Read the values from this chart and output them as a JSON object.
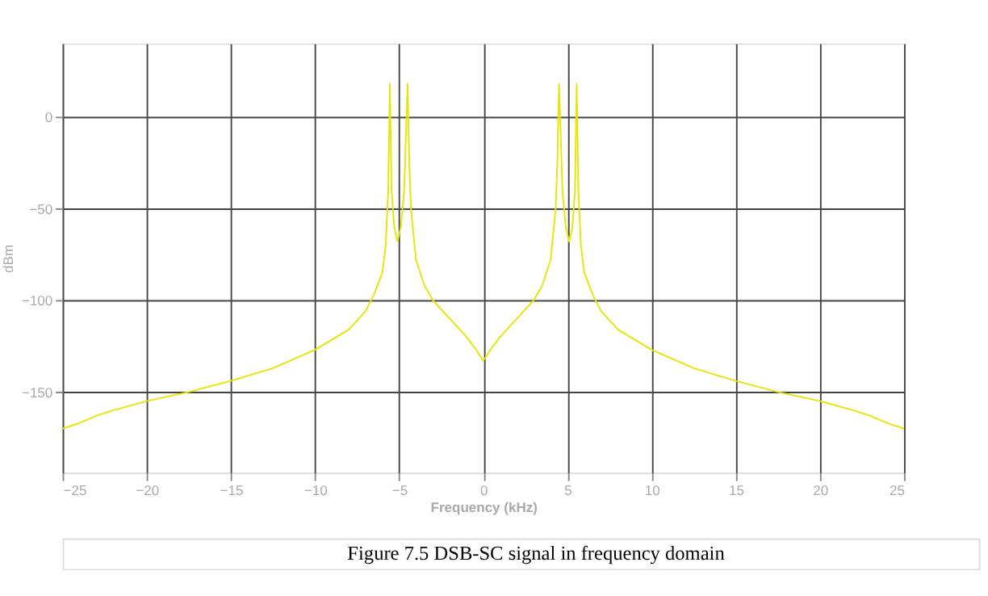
{
  "chart_data": {
    "type": "line",
    "xlabel": "Frequency (kHz)",
    "ylabel": "dBm",
    "x": [
      -25,
      -24,
      -23,
      -22,
      -20,
      -17.5,
      -15,
      -12.5,
      -10,
      -8,
      -7,
      -6.5,
      -6,
      -5.8,
      -5.65,
      -5.55,
      -5.45,
      -5.3,
      -5.1,
      -4.9,
      -4.7,
      -4.6,
      -4.5,
      -4.4,
      -4.3,
      -4,
      -3.5,
      -3,
      -2,
      -1,
      -0.5,
      0,
      0.5,
      1,
      2,
      3,
      3.5,
      4,
      4.3,
      4.4,
      4.5,
      4.6,
      4.7,
      4.9,
      5.1,
      5.3,
      5.45,
      5.55,
      5.65,
      5.8,
      6,
      6.5,
      7,
      8,
      10,
      12.5,
      15,
      17.5,
      20,
      22,
      23,
      24,
      25
    ],
    "series": [
      {
        "color": "#e6e600",
        "values": [
          -170,
          -167,
          -163,
          -160,
          -155,
          -150,
          -144,
          -137,
          -127,
          -116,
          -106,
          -97,
          -85,
          -70,
          -40,
          18,
          -40,
          -60,
          -68,
          -60,
          -40,
          -10,
          18,
          -25,
          -50,
          -78,
          -92,
          -100,
          -110,
          -120,
          -126,
          -133,
          -126,
          -120,
          -110,
          -100,
          -92,
          -78,
          -50,
          -25,
          18,
          -10,
          -40,
          -60,
          -68,
          -60,
          -40,
          18,
          -40,
          -70,
          -85,
          -97,
          -106,
          -116,
          -127,
          -137,
          -144,
          -150,
          -155,
          -160,
          -163,
          -167,
          -170
        ]
      }
    ],
    "xlim": [
      -25,
      25
    ],
    "xticks": [
      -25,
      -20,
      -15,
      -10,
      -5,
      0,
      5,
      10,
      15,
      20,
      25
    ],
    "ylim": [
      -194,
      40
    ],
    "yticks": [
      -150,
      -100,
      -50,
      0
    ],
    "grid": true,
    "line_style": "solid",
    "marker": "none",
    "annotations": [
      "Figure 7.5 DSB-SC signal in frequency domain"
    ]
  }
}
